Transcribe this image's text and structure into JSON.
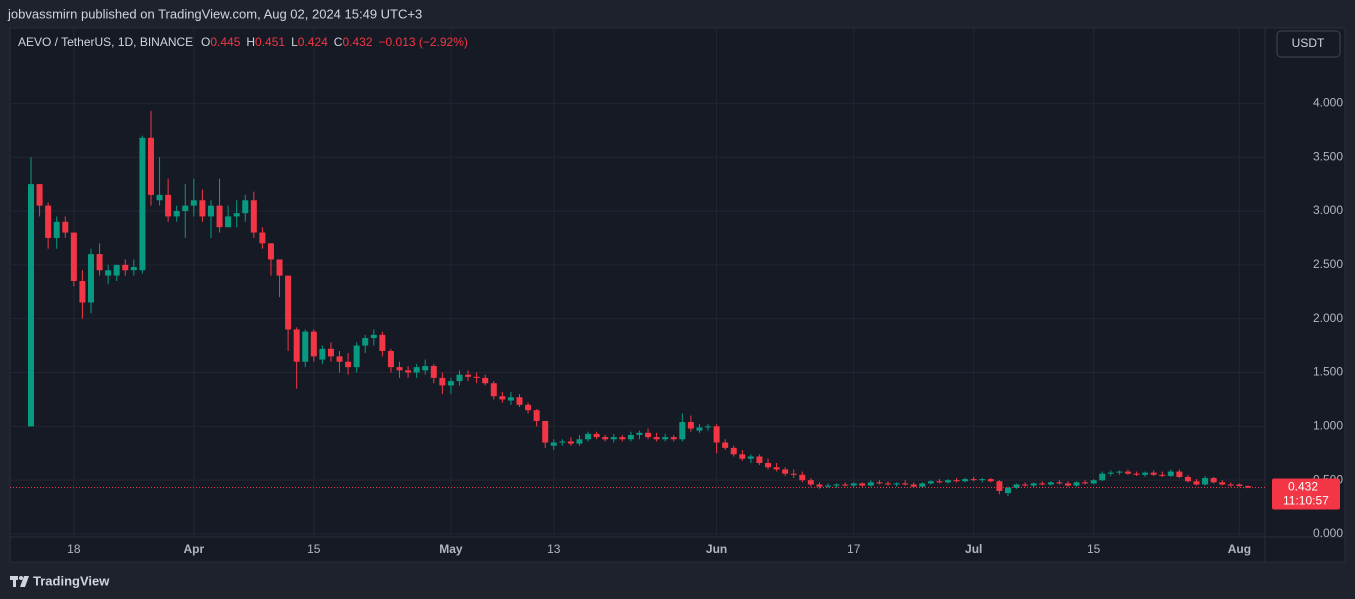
{
  "header": {
    "publisher": "jobvassmirn published on TradingView.com, Aug 02, 2024 15:49 UTC+3"
  },
  "footer": {
    "brand": "TradingView"
  },
  "currency_button": "USDT",
  "chart_data": {
    "type": "candlestick",
    "symbol": "AEVO / TetherUS, 1D, BINANCE",
    "legend": [
      {
        "label": "O",
        "value": "0.445"
      },
      {
        "label": "H",
        "value": "0.451"
      },
      {
        "label": "L",
        "value": "0.424"
      },
      {
        "label": "C",
        "value": "0.432"
      }
    ],
    "change": "−0.013 (−2.92%)",
    "last_price_label": "0.432",
    "countdown": "11:10:57",
    "up_color": "#089981",
    "down_color": "#f23645",
    "grid": true,
    "ylim": [
      -0.26,
      4.7
    ],
    "yticks": [
      {
        "value": 0,
        "label": "0.000"
      },
      {
        "value": 0.5,
        "label": "0.500"
      },
      {
        "value": 1,
        "label": "1.000"
      },
      {
        "value": 1.5,
        "label": "1.500"
      },
      {
        "value": 2,
        "label": "2.000"
      },
      {
        "value": 2.5,
        "label": "2.500"
      },
      {
        "value": 3,
        "label": "3.000"
      },
      {
        "value": 3.5,
        "label": "3.500"
      },
      {
        "value": 4,
        "label": "4.000"
      }
    ],
    "candles": [
      {
        "x": null,
        "open": 1.0,
        "high": 3.5,
        "low": 1.0,
        "close": 3.25
      },
      {
        "x": null,
        "open": 3.25,
        "high": 3.25,
        "low": 2.95,
        "close": 3.05
      },
      {
        "x": null,
        "open": 3.05,
        "high": 3.08,
        "low": 2.65,
        "close": 2.75
      },
      {
        "x": null,
        "open": 2.75,
        "high": 2.95,
        "low": 2.65,
        "close": 2.9
      },
      {
        "x": null,
        "open": 2.9,
        "high": 2.95,
        "low": 2.75,
        "close": 2.8
      },
      {
        "x": "18",
        "open": 2.8,
        "high": 2.8,
        "low": 2.3,
        "close": 2.35
      },
      {
        "x": null,
        "open": 2.35,
        "high": 2.45,
        "low": 2.0,
        "close": 2.15
      },
      {
        "x": null,
        "open": 2.15,
        "high": 2.65,
        "low": 2.05,
        "close": 2.6
      },
      {
        "x": null,
        "open": 2.6,
        "high": 2.7,
        "low": 2.4,
        "close": 2.45
      },
      {
        "x": null,
        "open": 2.4,
        "high": 2.5,
        "low": 2.32,
        "close": 2.45
      },
      {
        "x": null,
        "open": 2.4,
        "high": 2.5,
        "low": 2.35,
        "close": 2.5
      },
      {
        "x": null,
        "open": 2.5,
        "high": 2.55,
        "low": 2.4,
        "close": 2.45
      },
      {
        "x": null,
        "open": 2.45,
        "high": 2.55,
        "low": 2.4,
        "close": 2.48
      },
      {
        "x": null,
        "open": 2.45,
        "high": 3.7,
        "low": 2.42,
        "close": 3.68
      },
      {
        "x": null,
        "open": 3.68,
        "high": 3.93,
        "low": 3.05,
        "close": 3.15
      },
      {
        "x": null,
        "open": 3.1,
        "high": 3.5,
        "low": 3.05,
        "close": 3.15
      },
      {
        "x": null,
        "open": 3.15,
        "high": 3.3,
        "low": 2.9,
        "close": 2.95
      },
      {
        "x": null,
        "open": 2.95,
        "high": 3.05,
        "low": 2.9,
        "close": 3.0
      },
      {
        "x": null,
        "open": 3.0,
        "high": 3.25,
        "low": 2.75,
        "close": 3.05
      },
      {
        "x": "Apr",
        "open": 3.05,
        "high": 3.3,
        "low": 2.95,
        "close": 3.1
      },
      {
        "x": null,
        "open": 3.1,
        "high": 3.2,
        "low": 2.9,
        "close": 2.95
      },
      {
        "x": null,
        "open": 2.95,
        "high": 3.1,
        "low": 2.75,
        "close": 3.05
      },
      {
        "x": null,
        "open": 3.05,
        "high": 3.3,
        "low": 2.8,
        "close": 2.85
      },
      {
        "x": null,
        "open": 2.85,
        "high": 3.05,
        "low": 2.85,
        "close": 2.95
      },
      {
        "x": null,
        "open": 2.95,
        "high": 3.1,
        "low": 2.85,
        "close": 2.98
      },
      {
        "x": null,
        "open": 2.98,
        "high": 3.15,
        "low": 2.9,
        "close": 3.1
      },
      {
        "x": null,
        "open": 3.1,
        "high": 3.18,
        "low": 2.75,
        "close": 2.8
      },
      {
        "x": null,
        "open": 2.8,
        "high": 2.85,
        "low": 2.65,
        "close": 2.7
      },
      {
        "x": null,
        "open": 2.7,
        "high": 2.7,
        "low": 2.4,
        "close": 2.55
      },
      {
        "x": null,
        "open": 2.55,
        "high": 2.55,
        "low": 2.2,
        "close": 2.4
      },
      {
        "x": null,
        "open": 2.4,
        "high": 2.4,
        "low": 1.7,
        "close": 1.9
      },
      {
        "x": null,
        "open": 1.9,
        "high": 1.92,
        "low": 1.35,
        "close": 1.6
      },
      {
        "x": null,
        "open": 1.6,
        "high": 1.9,
        "low": 1.55,
        "close": 1.88
      },
      {
        "x": "15",
        "open": 1.88,
        "high": 1.9,
        "low": 1.6,
        "close": 1.65
      },
      {
        "x": null,
        "open": 1.62,
        "high": 1.75,
        "low": 1.58,
        "close": 1.72
      },
      {
        "x": null,
        "open": 1.72,
        "high": 1.78,
        "low": 1.6,
        "close": 1.65
      },
      {
        "x": null,
        "open": 1.65,
        "high": 1.7,
        "low": 1.5,
        "close": 1.6
      },
      {
        "x": null,
        "open": 1.6,
        "high": 1.68,
        "low": 1.48,
        "close": 1.55
      },
      {
        "x": null,
        "open": 1.55,
        "high": 1.78,
        "low": 1.5,
        "close": 1.75
      },
      {
        "x": null,
        "open": 1.75,
        "high": 1.85,
        "low": 1.68,
        "close": 1.82
      },
      {
        "x": null,
        "open": 1.82,
        "high": 1.9,
        "low": 1.75,
        "close": 1.85
      },
      {
        "x": null,
        "open": 1.85,
        "high": 1.88,
        "low": 1.65,
        "close": 1.7
      },
      {
        "x": null,
        "open": 1.7,
        "high": 1.72,
        "low": 1.5,
        "close": 1.55
      },
      {
        "x": null,
        "open": 1.55,
        "high": 1.6,
        "low": 1.45,
        "close": 1.52
      },
      {
        "x": null,
        "open": 1.52,
        "high": 1.56,
        "low": 1.45,
        "close": 1.5
      },
      {
        "x": null,
        "open": 1.5,
        "high": 1.58,
        "low": 1.45,
        "close": 1.55
      },
      {
        "x": null,
        "open": 1.52,
        "high": 1.62,
        "low": 1.48,
        "close": 1.56
      },
      {
        "x": null,
        "open": 1.56,
        "high": 1.58,
        "low": 1.4,
        "close": 1.45
      },
      {
        "x": null,
        "open": 1.45,
        "high": 1.5,
        "low": 1.3,
        "close": 1.38
      },
      {
        "x": "May",
        "open": 1.38,
        "high": 1.45,
        "low": 1.3,
        "close": 1.42
      },
      {
        "x": null,
        "open": 1.42,
        "high": 1.52,
        "low": 1.38,
        "close": 1.48
      },
      {
        "x": null,
        "open": 1.48,
        "high": 1.52,
        "low": 1.42,
        "close": 1.46
      },
      {
        "x": null,
        "open": 1.46,
        "high": 1.5,
        "low": 1.4,
        "close": 1.45
      },
      {
        "x": null,
        "open": 1.45,
        "high": 1.48,
        "low": 1.38,
        "close": 1.4
      },
      {
        "x": null,
        "open": 1.4,
        "high": 1.42,
        "low": 1.25,
        "close": 1.28
      },
      {
        "x": null,
        "open": 1.28,
        "high": 1.32,
        "low": 1.22,
        "close": 1.25
      },
      {
        "x": null,
        "open": 1.24,
        "high": 1.32,
        "low": 1.2,
        "close": 1.27
      },
      {
        "x": null,
        "open": 1.27,
        "high": 1.3,
        "low": 1.18,
        "close": 1.2
      },
      {
        "x": null,
        "open": 1.2,
        "high": 1.22,
        "low": 1.12,
        "close": 1.15
      },
      {
        "x": null,
        "open": 1.15,
        "high": 1.16,
        "low": 1.0,
        "close": 1.05
      },
      {
        "x": null,
        "open": 1.05,
        "high": 1.05,
        "low": 0.8,
        "close": 0.85
      },
      {
        "x": "13",
        "open": 0.82,
        "high": 0.88,
        "low": 0.78,
        "close": 0.85
      },
      {
        "x": null,
        "open": 0.85,
        "high": 0.88,
        "low": 0.82,
        "close": 0.86
      },
      {
        "x": null,
        "open": 0.86,
        "high": 0.9,
        "low": 0.82,
        "close": 0.84
      },
      {
        "x": null,
        "open": 0.84,
        "high": 0.92,
        "low": 0.82,
        "close": 0.88
      },
      {
        "x": null,
        "open": 0.88,
        "high": 0.95,
        "low": 0.86,
        "close": 0.93
      },
      {
        "x": null,
        "open": 0.93,
        "high": 0.95,
        "low": 0.88,
        "close": 0.9
      },
      {
        "x": null,
        "open": 0.9,
        "high": 0.92,
        "low": 0.86,
        "close": 0.88
      },
      {
        "x": null,
        "open": 0.88,
        "high": 0.93,
        "low": 0.85,
        "close": 0.9
      },
      {
        "x": null,
        "open": 0.9,
        "high": 0.92,
        "low": 0.86,
        "close": 0.88
      },
      {
        "x": null,
        "open": 0.88,
        "high": 0.95,
        "low": 0.86,
        "close": 0.92
      },
      {
        "x": null,
        "open": 0.92,
        "high": 0.96,
        "low": 0.88,
        "close": 0.94
      },
      {
        "x": null,
        "open": 0.94,
        "high": 0.98,
        "low": 0.88,
        "close": 0.9
      },
      {
        "x": null,
        "open": 0.9,
        "high": 0.94,
        "low": 0.86,
        "close": 0.88
      },
      {
        "x": null,
        "open": 0.88,
        "high": 0.93,
        "low": 0.86,
        "close": 0.9
      },
      {
        "x": null,
        "open": 0.9,
        "high": 0.92,
        "low": 0.86,
        "close": 0.88
      },
      {
        "x": null,
        "open": 0.88,
        "high": 1.12,
        "low": 0.86,
        "close": 1.04
      },
      {
        "x": null,
        "open": 1.04,
        "high": 1.1,
        "low": 0.95,
        "close": 0.98
      },
      {
        "x": null,
        "open": 0.96,
        "high": 1.02,
        "low": 0.94,
        "close": 0.99
      },
      {
        "x": null,
        "open": 0.99,
        "high": 1.02,
        "low": 0.96,
        "close": 1.0
      },
      {
        "x": "Jun",
        "open": 1.0,
        "high": 1.02,
        "low": 0.75,
        "close": 0.85
      },
      {
        "x": null,
        "open": 0.85,
        "high": 0.88,
        "low": 0.78,
        "close": 0.8
      },
      {
        "x": null,
        "open": 0.8,
        "high": 0.82,
        "low": 0.72,
        "close": 0.74
      },
      {
        "x": null,
        "open": 0.74,
        "high": 0.78,
        "low": 0.68,
        "close": 0.7
      },
      {
        "x": null,
        "open": 0.7,
        "high": 0.74,
        "low": 0.66,
        "close": 0.72
      },
      {
        "x": null,
        "open": 0.72,
        "high": 0.74,
        "low": 0.64,
        "close": 0.66
      },
      {
        "x": null,
        "open": 0.66,
        "high": 0.7,
        "low": 0.6,
        "close": 0.62
      },
      {
        "x": null,
        "open": 0.62,
        "high": 0.66,
        "low": 0.58,
        "close": 0.6
      },
      {
        "x": null,
        "open": 0.6,
        "high": 0.62,
        "low": 0.54,
        "close": 0.56
      },
      {
        "x": null,
        "open": 0.56,
        "high": 0.6,
        "low": 0.52,
        "close": 0.55
      },
      {
        "x": null,
        "open": 0.55,
        "high": 0.58,
        "low": 0.48,
        "close": 0.5
      },
      {
        "x": null,
        "open": 0.5,
        "high": 0.52,
        "low": 0.44,
        "close": 0.46
      },
      {
        "x": null,
        "open": 0.46,
        "high": 0.48,
        "low": 0.42,
        "close": 0.44
      },
      {
        "x": null,
        "open": 0.44,
        "high": 0.47,
        "low": 0.43,
        "close": 0.45
      },
      {
        "x": null,
        "open": 0.45,
        "high": 0.47,
        "low": 0.43,
        "close": 0.46
      },
      {
        "x": null,
        "open": 0.46,
        "high": 0.48,
        "low": 0.44,
        "close": 0.45
      },
      {
        "x": "17",
        "open": 0.45,
        "high": 0.48,
        "low": 0.43,
        "close": 0.47
      },
      {
        "x": null,
        "open": 0.47,
        "high": 0.48,
        "low": 0.44,
        "close": 0.45
      },
      {
        "x": null,
        "open": 0.45,
        "high": 0.5,
        "low": 0.44,
        "close": 0.48
      },
      {
        "x": null,
        "open": 0.48,
        "high": 0.5,
        "low": 0.46,
        "close": 0.47
      },
      {
        "x": null,
        "open": 0.47,
        "high": 0.49,
        "low": 0.45,
        "close": 0.46
      },
      {
        "x": null,
        "open": 0.46,
        "high": 0.48,
        "low": 0.44,
        "close": 0.47
      },
      {
        "x": null,
        "open": 0.47,
        "high": 0.5,
        "low": 0.45,
        "close": 0.46
      },
      {
        "x": null,
        "open": 0.46,
        "high": 0.48,
        "low": 0.43,
        "close": 0.44
      },
      {
        "x": null,
        "open": 0.44,
        "high": 0.48,
        "low": 0.43,
        "close": 0.47
      },
      {
        "x": null,
        "open": 0.47,
        "high": 0.5,
        "low": 0.46,
        "close": 0.49
      },
      {
        "x": null,
        "open": 0.49,
        "high": 0.51,
        "low": 0.47,
        "close": 0.48
      },
      {
        "x": null,
        "open": 0.48,
        "high": 0.51,
        "low": 0.47,
        "close": 0.5
      },
      {
        "x": null,
        "open": 0.5,
        "high": 0.52,
        "low": 0.48,
        "close": 0.49
      },
      {
        "x": null,
        "open": 0.49,
        "high": 0.52,
        "low": 0.48,
        "close": 0.51
      },
      {
        "x": "Jul",
        "open": 0.51,
        "high": 0.53,
        "low": 0.49,
        "close": 0.5
      },
      {
        "x": null,
        "open": 0.5,
        "high": 0.52,
        "low": 0.48,
        "close": 0.51
      },
      {
        "x": null,
        "open": 0.51,
        "high": 0.52,
        "low": 0.48,
        "close": 0.49
      },
      {
        "x": null,
        "open": 0.49,
        "high": 0.5,
        "low": 0.37,
        "close": 0.4
      },
      {
        "x": null,
        "open": 0.38,
        "high": 0.44,
        "low": 0.35,
        "close": 0.43
      },
      {
        "x": null,
        "open": 0.43,
        "high": 0.47,
        "low": 0.42,
        "close": 0.46
      },
      {
        "x": null,
        "open": 0.46,
        "high": 0.48,
        "low": 0.44,
        "close": 0.45
      },
      {
        "x": null,
        "open": 0.45,
        "high": 0.48,
        "low": 0.43,
        "close": 0.47
      },
      {
        "x": null,
        "open": 0.47,
        "high": 0.49,
        "low": 0.45,
        "close": 0.46
      },
      {
        "x": null,
        "open": 0.46,
        "high": 0.49,
        "low": 0.45,
        "close": 0.48
      },
      {
        "x": null,
        "open": 0.48,
        "high": 0.5,
        "low": 0.46,
        "close": 0.47
      },
      {
        "x": null,
        "open": 0.47,
        "high": 0.49,
        "low": 0.44,
        "close": 0.45
      },
      {
        "x": null,
        "open": 0.45,
        "high": 0.49,
        "low": 0.44,
        "close": 0.48
      },
      {
        "x": null,
        "open": 0.48,
        "high": 0.5,
        "low": 0.46,
        "close": 0.47
      },
      {
        "x": "15",
        "open": 0.47,
        "high": 0.51,
        "low": 0.46,
        "close": 0.5
      },
      {
        "x": null,
        "open": 0.5,
        "high": 0.58,
        "low": 0.49,
        "close": 0.56
      },
      {
        "x": null,
        "open": 0.56,
        "high": 0.59,
        "low": 0.54,
        "close": 0.57
      },
      {
        "x": null,
        "open": 0.57,
        "high": 0.59,
        "low": 0.55,
        "close": 0.58
      },
      {
        "x": null,
        "open": 0.58,
        "high": 0.6,
        "low": 0.55,
        "close": 0.56
      },
      {
        "x": null,
        "open": 0.56,
        "high": 0.58,
        "low": 0.54,
        "close": 0.55
      },
      {
        "x": null,
        "open": 0.55,
        "high": 0.58,
        "low": 0.53,
        "close": 0.57
      },
      {
        "x": null,
        "open": 0.57,
        "high": 0.59,
        "low": 0.54,
        "close": 0.55
      },
      {
        "x": null,
        "open": 0.55,
        "high": 0.58,
        "low": 0.53,
        "close": 0.54
      },
      {
        "x": null,
        "open": 0.54,
        "high": 0.6,
        "low": 0.53,
        "close": 0.58
      },
      {
        "x": null,
        "open": 0.58,
        "high": 0.6,
        "low": 0.52,
        "close": 0.53
      },
      {
        "x": null,
        "open": 0.53,
        "high": 0.55,
        "low": 0.48,
        "close": 0.49
      },
      {
        "x": null,
        "open": 0.49,
        "high": 0.51,
        "low": 0.45,
        "close": 0.46
      },
      {
        "x": null,
        "open": 0.46,
        "high": 0.54,
        "low": 0.45,
        "close": 0.52
      },
      {
        "x": null,
        "open": 0.52,
        "high": 0.53,
        "low": 0.47,
        "close": 0.48
      },
      {
        "x": null,
        "open": 0.48,
        "high": 0.5,
        "low": 0.45,
        "close": 0.46
      },
      {
        "x": null,
        "open": 0.46,
        "high": 0.48,
        "low": 0.44,
        "close": 0.45
      },
      {
        "x": "Aug",
        "open": 0.46,
        "high": 0.47,
        "low": 0.44,
        "close": 0.445
      },
      {
        "x": null,
        "open": 0.445,
        "high": 0.451,
        "low": 0.424,
        "close": 0.432
      }
    ]
  }
}
